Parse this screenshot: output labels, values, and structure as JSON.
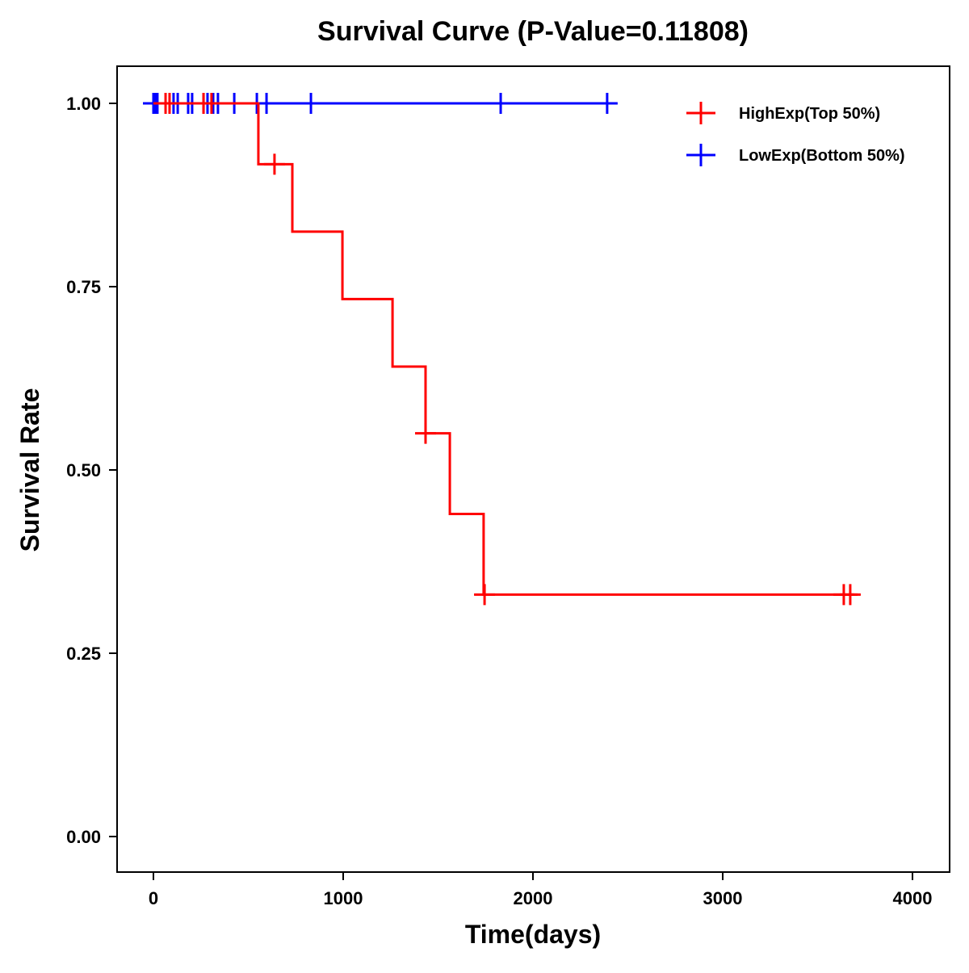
{
  "chart_data": {
    "type": "line",
    "subtype": "kaplan-meier step",
    "title": "Survival Curve (P-Value=0.11808)",
    "xlabel": "Time(days)",
    "ylabel": "Survival Rate",
    "xlim": [
      -200,
      4200
    ],
    "ylim": [
      -0.05,
      1.05
    ],
    "xticks": [
      0,
      1000,
      2000,
      3000,
      4000
    ],
    "xtick_labels": [
      "0",
      "1000",
      "2000",
      "3000",
      "4000"
    ],
    "yticks": [
      0,
      0.25,
      0.5,
      0.75,
      1.0
    ],
    "ytick_labels": [
      "0.00",
      "0.25",
      "0.50",
      "0.75",
      "1.00"
    ],
    "grid": false,
    "legend_position": "top-right",
    "series": [
      {
        "name": "HighExp(Top 50%)",
        "color": "#ff0000",
        "steps": [
          [
            0,
            1.0
          ],
          [
            553,
            0.917
          ],
          [
            732,
            0.825
          ],
          [
            996,
            0.733
          ],
          [
            1260,
            0.641
          ],
          [
            1434,
            0.55
          ],
          [
            1562,
            0.44
          ],
          [
            1740,
            0.33
          ],
          [
            3711,
            0.33
          ]
        ],
        "censored": [
          [
            64,
            1.0
          ],
          [
            85,
            1.0
          ],
          [
            264,
            1.0
          ],
          [
            306,
            1.0
          ],
          [
            638,
            0.917
          ],
          [
            1434,
            0.55
          ],
          [
            1745,
            0.33
          ],
          [
            3638,
            0.33
          ],
          [
            3672,
            0.33
          ]
        ]
      },
      {
        "name": "LowExp(Bottom 50%)",
        "color": "#0000ff",
        "steps": [
          [
            0,
            1.0
          ],
          [
            2391,
            1.0
          ]
        ],
        "censored": [
          [
            0,
            1.0
          ],
          [
            10,
            1.0
          ],
          [
            21,
            1.0
          ],
          [
            106,
            1.0
          ],
          [
            128,
            1.0
          ],
          [
            183,
            1.0
          ],
          [
            204,
            1.0
          ],
          [
            264,
            1.0
          ],
          [
            285,
            1.0
          ],
          [
            315,
            1.0
          ],
          [
            340,
            1.0
          ],
          [
            426,
            1.0
          ],
          [
            545,
            1.0
          ],
          [
            596,
            1.0
          ],
          [
            830,
            1.0
          ],
          [
            1830,
            1.0
          ],
          [
            2391,
            1.0
          ]
        ]
      }
    ]
  }
}
